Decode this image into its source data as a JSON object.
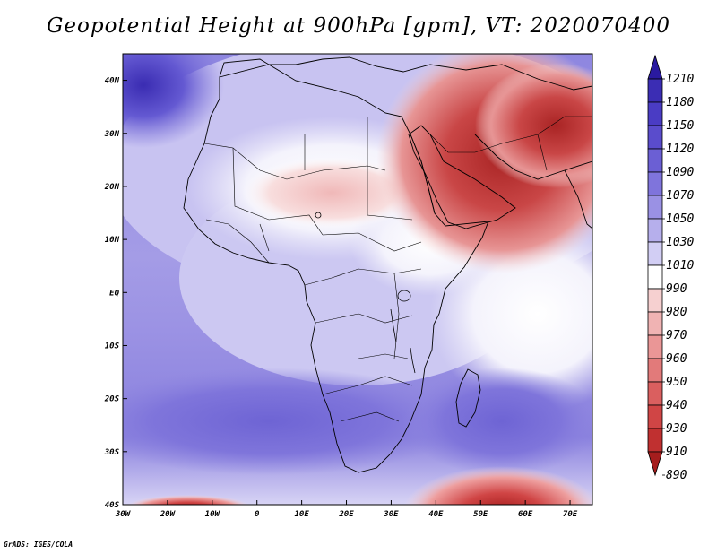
{
  "title": "Geopotential Height at 900hPa [gpm], VT: 2020070400",
  "credit": "GrADS: IGES/COLA",
  "map": {
    "projection": "latlon",
    "lon_range": [
      -30,
      75
    ],
    "lat_range": [
      -40,
      45
    ],
    "lon_ticks": [
      "30W",
      "20W",
      "10W",
      "0",
      "10E",
      "20E",
      "30E",
      "40E",
      "50E",
      "60E",
      "70E"
    ],
    "lat_ticks": [
      "40S",
      "30S",
      "20S",
      "10S",
      "EQ",
      "10N",
      "20N",
      "30N",
      "40N"
    ],
    "coastline_color": "#000000"
  },
  "colorbar": {
    "orientation": "vertical",
    "labels": [
      "1210",
      "1180",
      "1150",
      "1120",
      "1090",
      "1070",
      "1050",
      "1030",
      "1010",
      "990",
      "980",
      "970",
      "960",
      "950",
      "940",
      "930",
      "910",
      "890"
    ],
    "colors": [
      "#2a1aa0",
      "#3b2db4",
      "#4a3cc4",
      "#5a4ccc",
      "#6b5fd4",
      "#7f74dc",
      "#9a91e4",
      "#b6afec",
      "#d2cef4",
      "#ffffff",
      "#f6d0d0",
      "#f0b3b3",
      "#ea9696",
      "#e27a7a",
      "#da5f5f",
      "#d04545",
      "#c03030",
      "#a51d1d"
    ]
  }
}
